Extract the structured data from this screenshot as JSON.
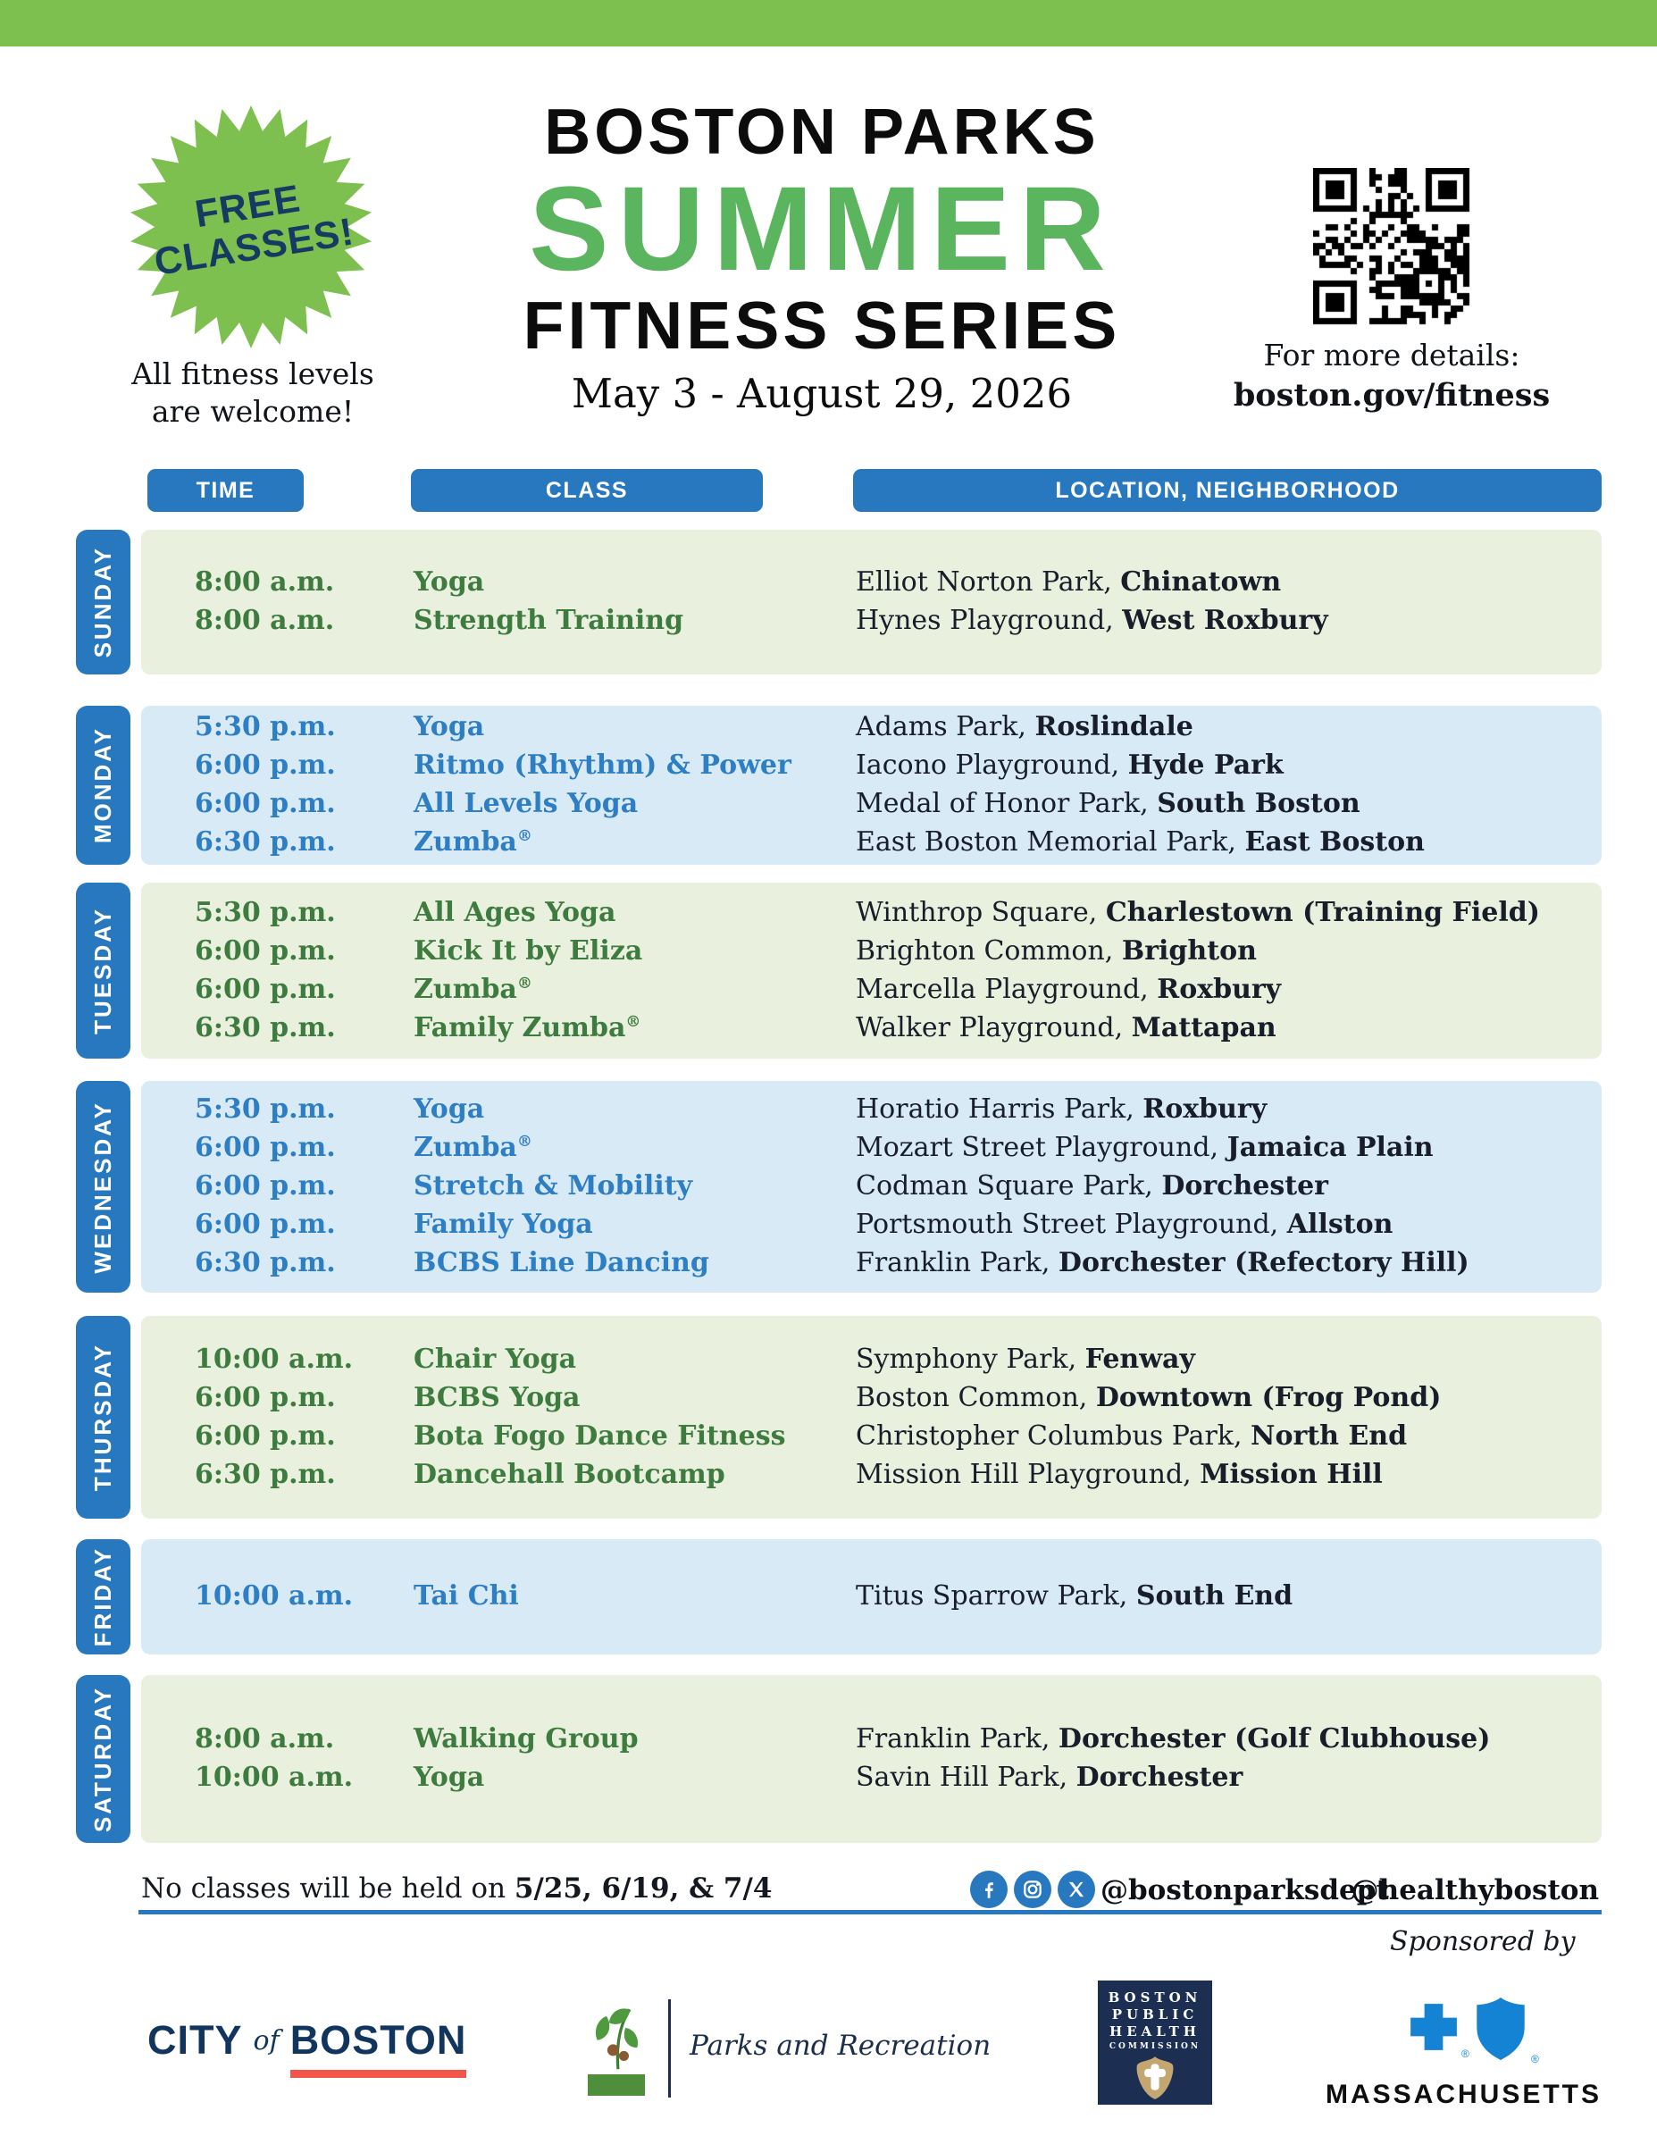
{
  "header": {
    "badge_line1": "FREE",
    "badge_line2": "CLASSES!",
    "welcome_line1": "All fitness levels",
    "welcome_line2": "are welcome!",
    "title_line1": "BOSTON PARKS",
    "title_line2": "SUMMER",
    "title_line3": "FITNESS SERIES",
    "date_range": "May 3 - August 29, 2026",
    "details_label": "For more details:",
    "details_url": "boston.gov/fitness"
  },
  "table": {
    "col_time": "TIME",
    "col_class": "CLASS",
    "col_location": "LOCATION, NEIGHBORHOOD",
    "days": [
      {
        "name": "SUNDAY",
        "rows": [
          {
            "time": "8:00 a.m.",
            "cls": "Yoga",
            "park": "Elliot Norton Park,",
            "hood": "Chinatown"
          },
          {
            "time": "8:00 a.m.",
            "cls": "Strength Training",
            "park": "Hynes Playground,",
            "hood": "West Roxbury"
          }
        ]
      },
      {
        "name": "MONDAY",
        "rows": [
          {
            "time": "5:30 p.m.",
            "cls": "Yoga",
            "park": "Adams Park,",
            "hood": "Roslindale"
          },
          {
            "time": "6:00 p.m.",
            "cls": "Ritmo (Rhythm) & Power",
            "park": "Iacono Playground,",
            "hood": "Hyde Park"
          },
          {
            "time": "6:00 p.m.",
            "cls": "All Levels Yoga",
            "park": "Medal of Honor Park,",
            "hood": "South Boston"
          },
          {
            "time": "6:30 p.m.",
            "cls": "Zumba",
            "sup": "®",
            "park": "East Boston Memorial Park,",
            "hood": "East Boston"
          }
        ]
      },
      {
        "name": "TUESDAY",
        "rows": [
          {
            "time": "5:30 p.m.",
            "cls": "All Ages Yoga",
            "park": "Winthrop Square,",
            "hood": "Charlestown (Training Field)"
          },
          {
            "time": "6:00 p.m.",
            "cls": "Kick It by Eliza",
            "park": "Brighton Common,",
            "hood": "Brighton"
          },
          {
            "time": "6:00 p.m.",
            "cls": "Zumba",
            "sup": "®",
            "park": "Marcella Playground,",
            "hood": "Roxbury"
          },
          {
            "time": "6:30 p.m.",
            "cls": "Family Zumba",
            "sup": "®",
            "park": "Walker Playground,",
            "hood": "Mattapan"
          }
        ]
      },
      {
        "name": "WEDNESDAY",
        "rows": [
          {
            "time": "5:30 p.m.",
            "cls": "Yoga",
            "park": "Horatio Harris Park,",
            "hood": "Roxbury"
          },
          {
            "time": "6:00 p.m.",
            "cls": "Zumba",
            "sup": "®",
            "park": "Mozart Street Playground,",
            "hood": "Jamaica Plain"
          },
          {
            "time": "6:00 p.m.",
            "cls": "Stretch & Mobility",
            "park": "Codman Square Park,",
            "hood": "Dorchester"
          },
          {
            "time": "6:00 p.m.",
            "cls": "Family Yoga",
            "park": "Portsmouth Street Playground,",
            "hood": "Allston"
          },
          {
            "time": "6:30 p.m.",
            "cls": "BCBS Line Dancing",
            "park": "Franklin Park,",
            "hood": "Dorchester (Refectory Hill)"
          }
        ]
      },
      {
        "name": "THURSDAY",
        "rows": [
          {
            "time": "10:00 a.m.",
            "cls": "Chair Yoga",
            "park": "Symphony Park,",
            "hood": "Fenway"
          },
          {
            "time": "6:00 p.m.",
            "cls": "BCBS Yoga",
            "park": "Boston Common,",
            "hood": "Downtown (Frog Pond)"
          },
          {
            "time": "6:00 p.m.",
            "cls": "Bota Fogo Dance Fitness",
            "park": "Christopher Columbus Park,",
            "hood": "North End"
          },
          {
            "time": "6:30 p.m.",
            "cls": "Dancehall Bootcamp",
            "park": "Mission Hill Playground,",
            "hood": "Mission Hill"
          }
        ]
      },
      {
        "name": "FRIDAY",
        "rows": [
          {
            "time": "10:00 a.m.",
            "cls": "Tai Chi",
            "park": "Titus Sparrow Park,",
            "hood": "South End"
          }
        ]
      },
      {
        "name": "SATURDAY",
        "rows": [
          {
            "time": "8:00 a.m.",
            "cls": "Walking Group",
            "park": "Franklin Park,",
            "hood": "Dorchester (Golf Clubhouse)"
          },
          {
            "time": "10:00 a.m.",
            "cls": "Yoga",
            "park": "Savin Hill Park,",
            "hood": "Dorchester"
          }
        ]
      }
    ]
  },
  "footer": {
    "no_classes_prefix": "No classes will be held on",
    "no_classes_dates": "5/25, 6/19, & 7/4",
    "handle_parks": "@bostonparksdept",
    "handle_health": "@healthyboston",
    "sponsored_by": "Sponsored by",
    "city_logo": {
      "word1": "CITY",
      "word2": "of",
      "word3": "BOSTON"
    },
    "parks_logo": {
      "label": "Parks and Recreation"
    },
    "bphc_logo": {
      "line1": "BOSTON",
      "line2": "PUBLIC",
      "line3": "HEALTH",
      "line4": "COMMISSION"
    },
    "bcbs_logo": {
      "state": "MASSACHUSETTS"
    }
  },
  "colors": {
    "brand_blue": "#2778be",
    "light_blue_row": "#d9eaf7",
    "light_green_row": "#e9f0de",
    "green_text": "#3d7b3f",
    "blue_text": "#2e7ec4",
    "badge_green": "#7ec04f",
    "summer_green": "#5ab55e",
    "navy": "#173a63",
    "red_accent": "#f4554a"
  }
}
